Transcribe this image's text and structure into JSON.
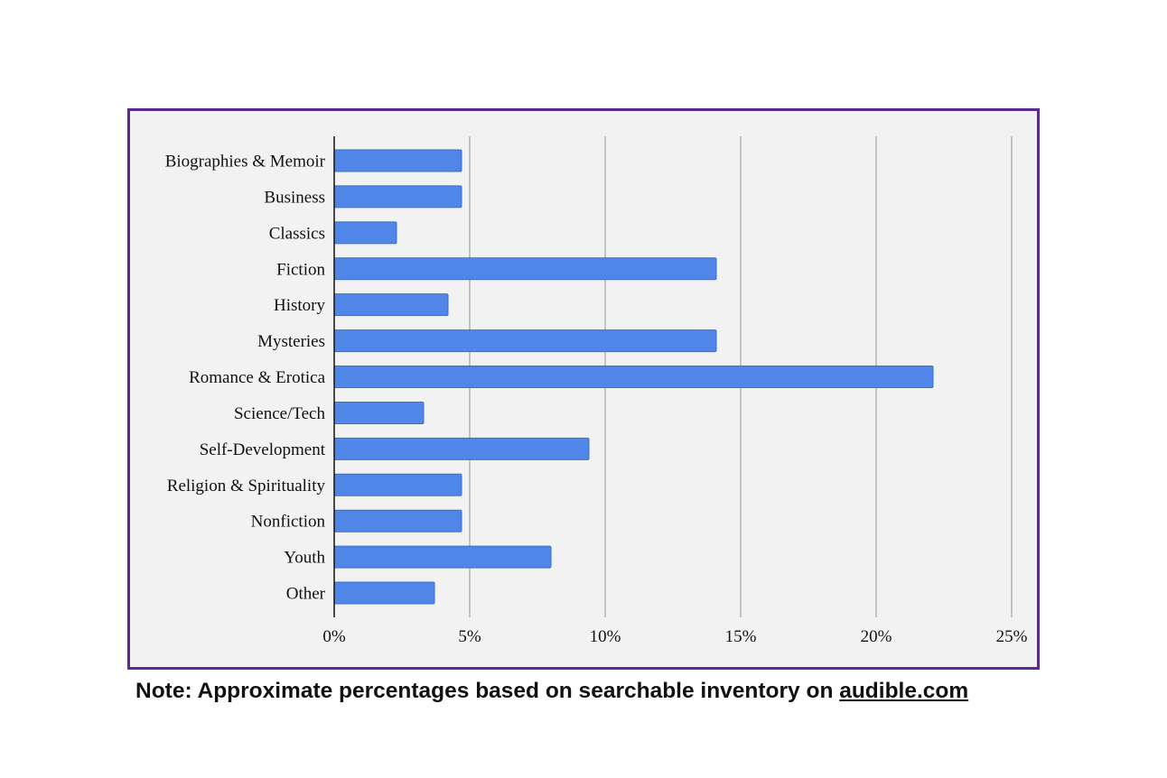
{
  "chart_data": {
    "type": "bar",
    "orientation": "horizontal",
    "categories": [
      "Biographies & Memoir",
      "Business",
      "Classics",
      "Fiction",
      "History",
      "Mysteries",
      "Romance & Erotica",
      "Science/Tech",
      "Self-Development",
      "Religion & Spirituality",
      "Nonfiction",
      "Youth",
      "Other"
    ],
    "values": [
      4.7,
      4.7,
      2.3,
      14.1,
      4.2,
      14.1,
      22.1,
      3.3,
      9.4,
      4.7,
      4.7,
      8.0,
      3.7
    ],
    "x_ticks": [
      "0%",
      "5%",
      "10%",
      "15%",
      "20%",
      "25%"
    ],
    "xlim": [
      0,
      25
    ],
    "grid": "vertical",
    "legend": "none",
    "bar_color": "#4f86e8",
    "background_color": "#f2f2f2",
    "frame_color": "#5b2a91"
  },
  "note": {
    "text": "Note: Approximate percentages based on searchable inventory on ",
    "link_text": "audible.com"
  }
}
